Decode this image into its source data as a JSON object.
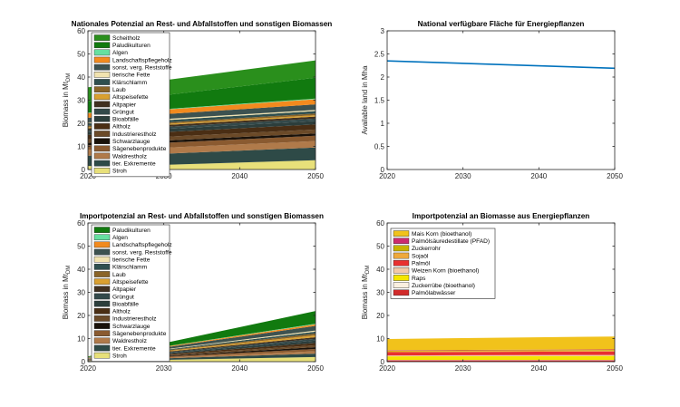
{
  "chart_data": [
    {
      "type": "area",
      "title": "Nationales Potenzial an Rest- und Abfallstoffen und sonstigen Biomassen",
      "ylabel_main": "Biomass in Mt",
      "ylabel_sub": "DM",
      "xlabel": "",
      "x": [
        2020,
        2030,
        2050
      ],
      "xticks": [
        2020,
        2030,
        2040,
        2050
      ],
      "xlim": [
        2020,
        2050
      ],
      "ylim": [
        0,
        60
      ],
      "yticks": [
        0,
        10,
        20,
        30,
        40,
        50,
        60
      ],
      "stack_order": "bottom-up",
      "series": [
        {
          "name": "Stroh",
          "color": "#e8e07a",
          "values": [
            1.5,
            2.0,
            4.0
          ]
        },
        {
          "name": "tier. Exkremente",
          "color": "#2e4a47",
          "values": [
            4.5,
            4.8,
            5.5
          ]
        },
        {
          "name": "Waldrestholz",
          "color": "#b07a4a",
          "values": [
            2.5,
            2.6,
            2.8
          ]
        },
        {
          "name": "Sägenebenprodukte",
          "color": "#8a5a30",
          "values": [
            2.0,
            2.1,
            2.3
          ]
        },
        {
          "name": "Schwarzlauge",
          "color": "#1a120a",
          "values": [
            1.0,
            1.0,
            1.0
          ]
        },
        {
          "name": "Industrierestholz",
          "color": "#6b4a28",
          "values": [
            1.5,
            1.6,
            1.7
          ]
        },
        {
          "name": "Altholz",
          "color": "#4a2e14",
          "values": [
            2.0,
            2.1,
            2.2
          ]
        },
        {
          "name": "Bioabfälle",
          "color": "#2c3e3c",
          "values": [
            1.2,
            1.3,
            1.5
          ]
        },
        {
          "name": "Grüngut",
          "color": "#33494a",
          "values": [
            0.8,
            0.9,
            1.0
          ]
        },
        {
          "name": "Altpapier",
          "color": "#403020",
          "values": [
            0.8,
            0.8,
            0.9
          ]
        },
        {
          "name": "Altspeisefette",
          "color": "#d9a030",
          "values": [
            0.5,
            0.5,
            0.6
          ]
        },
        {
          "name": "Laub",
          "color": "#8a6428",
          "values": [
            0.6,
            0.6,
            0.7
          ]
        },
        {
          "name": "Klärschlamm",
          "color": "#2f4f4f",
          "values": [
            1.0,
            1.0,
            1.1
          ]
        },
        {
          "name": "tierische Fette",
          "color": "#f2e3b0",
          "values": [
            0.5,
            0.5,
            0.5
          ]
        },
        {
          "name": "sonst. verg. Reststoffe",
          "color": "#3d5250",
          "values": [
            2.0,
            2.1,
            2.4
          ]
        },
        {
          "name": "Landschaftspflegeholz",
          "color": "#f28a1e",
          "values": [
            2.0,
            2.0,
            2.2
          ]
        },
        {
          "name": "Algen",
          "color": "#66e0a0",
          "values": [
            0.2,
            0.2,
            0.3
          ]
        },
        {
          "name": "Paludikulturen",
          "color": "#117a0f",
          "values": [
            5.0,
            6.0,
            9.0
          ]
        },
        {
          "name": "Scheitholz",
          "color": "#2a8f1c",
          "values": [
            6.0,
            6.5,
            7.5
          ]
        }
      ]
    },
    {
      "type": "line",
      "title": "National verfügbare Fläche für Energiepflanzen",
      "ylabel": "Available land in Mha",
      "xlabel": "",
      "xlim": [
        2020,
        2050
      ],
      "xticks": [
        2020,
        2030,
        2040,
        2050
      ],
      "ylim": [
        0,
        3
      ],
      "yticks": [
        0,
        0.5,
        1,
        1.5,
        2,
        2.5,
        3
      ],
      "series": [
        {
          "color": "#0072bd",
          "x": [
            2020,
            2050
          ],
          "values": [
            2.35,
            2.19
          ]
        }
      ]
    },
    {
      "type": "area",
      "title": "Importpotenzial an Rest- und Abfallstoffen und sonstigen Biomassen",
      "ylabel_main": "Biomass in Mt",
      "ylabel_sub": "DM",
      "xlabel": "",
      "x": [
        2020,
        2030,
        2050
      ],
      "xticks": [
        2020,
        2030,
        2040,
        2050
      ],
      "xlim": [
        2020,
        2050
      ],
      "ylim": [
        0,
        60
      ],
      "yticks": [
        0,
        10,
        20,
        30,
        40,
        50,
        60
      ],
      "stack_order": "bottom-up",
      "series": [
        {
          "name": "Stroh",
          "color": "#e8e07a",
          "values": [
            0.3,
            0.8,
            2.0
          ]
        },
        {
          "name": "tier. Exkremente",
          "color": "#2e4a47",
          "values": [
            0.2,
            0.6,
            1.5
          ]
        },
        {
          "name": "Waldrestholz",
          "color": "#b07a4a",
          "values": [
            0.1,
            0.4,
            1.0
          ]
        },
        {
          "name": "Sägenebenprodukte",
          "color": "#8a5a30",
          "values": [
            0.1,
            0.4,
            1.0
          ]
        },
        {
          "name": "Schwarzlauge",
          "color": "#1a120a",
          "values": [
            0.1,
            0.3,
            0.8
          ]
        },
        {
          "name": "Industrierestholz",
          "color": "#6b4a28",
          "values": [
            0.1,
            0.3,
            0.8
          ]
        },
        {
          "name": "Altholz",
          "color": "#4a2e14",
          "values": [
            0.1,
            0.4,
            1.0
          ]
        },
        {
          "name": "Bioabfälle",
          "color": "#2c3e3c",
          "values": [
            0.1,
            0.4,
            1.0
          ]
        },
        {
          "name": "Grüngut",
          "color": "#33494a",
          "values": [
            0.1,
            0.3,
            0.8
          ]
        },
        {
          "name": "Altpapier",
          "color": "#403020",
          "values": [
            0.1,
            0.3,
            0.7
          ]
        },
        {
          "name": "Altspeisefette",
          "color": "#d9a030",
          "values": [
            0.1,
            0.3,
            0.8
          ]
        },
        {
          "name": "Laub",
          "color": "#8a6428",
          "values": [
            0.1,
            0.3,
            0.8
          ]
        },
        {
          "name": "Klärschlamm",
          "color": "#2f4f4f",
          "values": [
            0.1,
            0.3,
            0.8
          ]
        },
        {
          "name": "tierische Fette",
          "color": "#f2e3b0",
          "values": [
            0.1,
            0.2,
            0.5
          ]
        },
        {
          "name": "sonst. verg. Reststoffe",
          "color": "#3d5250",
          "values": [
            0.2,
            0.8,
            2.0
          ]
        },
        {
          "name": "Landschaftspflegeholz",
          "color": "#f28a1e",
          "values": [
            0.1,
            0.3,
            0.7
          ]
        },
        {
          "name": "Algen",
          "color": "#66e0a0",
          "values": [
            0.0,
            0.1,
            0.2
          ]
        },
        {
          "name": "Paludikulturen",
          "color": "#117a0f",
          "values": [
            0.3,
            1.5,
            5.5
          ]
        }
      ]
    },
    {
      "type": "area",
      "title": "Importpotenzial an Biomasse aus Energiepflanzen",
      "ylabel_main": "Biomass in Mt",
      "ylabel_sub": "DM",
      "xlabel": "",
      "x": [
        2020,
        2030,
        2050
      ],
      "xticks": [
        2020,
        2030,
        2040,
        2050
      ],
      "xlim": [
        2020,
        2050
      ],
      "ylim": [
        0,
        60
      ],
      "yticks": [
        0,
        10,
        20,
        30,
        40,
        50,
        60
      ],
      "stack_order": "bottom-up",
      "series": [
        {
          "name": "Palmölabwässer",
          "color": "#d22b2b",
          "values": [
            0.6,
            0.6,
            0.6
          ]
        },
        {
          "name": "Zuckerrübe (bioethanol)",
          "color": "#faf0e0",
          "values": [
            0.2,
            0.2,
            0.2
          ]
        },
        {
          "name": "Raps",
          "color": "#f5e600",
          "values": [
            1.5,
            1.6,
            1.7
          ]
        },
        {
          "name": "Weizen Korn (bioethanol)",
          "color": "#f3c9a8",
          "values": [
            0.4,
            0.4,
            0.4
          ]
        },
        {
          "name": "Palmöl",
          "color": "#e83030",
          "values": [
            1.4,
            1.4,
            1.5
          ]
        },
        {
          "name": "Sojaöl",
          "color": "#eea93c",
          "values": [
            0.4,
            0.4,
            0.4
          ]
        },
        {
          "name": "Zuckerrohr",
          "color": "#c8b400",
          "values": [
            0.3,
            0.3,
            0.3
          ]
        },
        {
          "name": "Palmölsäuredestillate (PFAD)",
          "color": "#cc2b6e",
          "values": [
            0.2,
            0.2,
            0.2
          ]
        },
        {
          "name": "Mais Korn (bioethanol)",
          "color": "#f1c21b",
          "values": [
            4.8,
            5.1,
            5.6
          ]
        }
      ]
    }
  ]
}
